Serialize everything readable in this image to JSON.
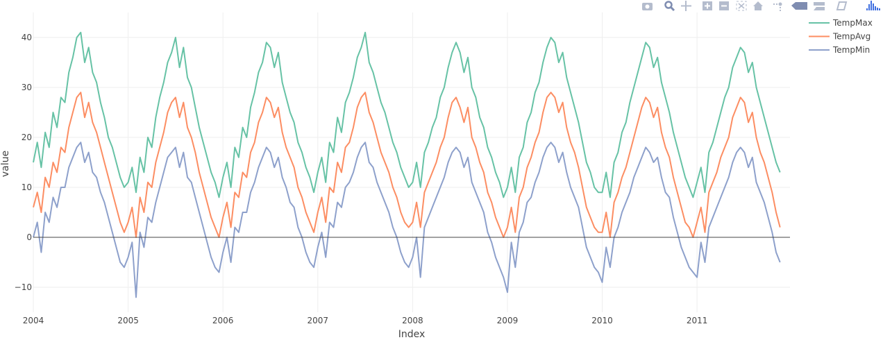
{
  "toolbar": {
    "buttons": [
      "camera-icon",
      "zoom-icon",
      "pan-icon",
      "zoom-in-icon",
      "zoom-out-icon",
      "autoscale-icon",
      "home-icon",
      "spike-lines-icon",
      "hover-closest-icon",
      "hover-compare-icon",
      "book-icon",
      "plotly-logo-icon"
    ]
  },
  "colors": {
    "TempMax": "#66c2a5",
    "TempAvg": "#fc8d62",
    "TempMin": "#8da0cb",
    "zeroline": "#444444",
    "grid": "#eeeeee",
    "toolbar": "#b4bccd",
    "active": "#7f8db1",
    "logo": "#3f6fe0"
  },
  "chart_data": {
    "type": "line",
    "title": "",
    "xlabel": "Index",
    "ylabel": "value",
    "xlim": [
      2004,
      2011.98
    ],
    "ylim": [
      -15,
      45
    ],
    "grid": true,
    "legend_position": "top-right",
    "x_start": 2004,
    "x_step_years": 0.0416667,
    "sampling": "semi-monthly (approximate)",
    "xticks": [
      "2004",
      "2005",
      "2006",
      "2007",
      "2008",
      "2009",
      "2010",
      "2011"
    ],
    "xtick_values": [
      2004,
      2005,
      2006,
      2007,
      2008,
      2009,
      2010,
      2011
    ],
    "yticks": [
      "−10",
      "0",
      "10",
      "20",
      "30",
      "40"
    ],
    "ytick_values": [
      -10,
      0,
      10,
      20,
      30,
      40
    ],
    "series": [
      {
        "name": "TempMax",
        "values": [
          15,
          19,
          14,
          21,
          18,
          25,
          22,
          28,
          27,
          33,
          36,
          40,
          41,
          35,
          38,
          33,
          31,
          27,
          24,
          20,
          18,
          15,
          12,
          10,
          11,
          14,
          9,
          16,
          13,
          20,
          18,
          24,
          28,
          31,
          35,
          37,
          40,
          34,
          38,
          32,
          30,
          26,
          22,
          19,
          16,
          13,
          11,
          8,
          12,
          15,
          10,
          18,
          16,
          22,
          20,
          26,
          29,
          33,
          35,
          39,
          38,
          34,
          37,
          31,
          28,
          25,
          23,
          19,
          17,
          14,
          12,
          9,
          13,
          16,
          11,
          19,
          17,
          24,
          21,
          27,
          29,
          32,
          36,
          38,
          41,
          35,
          33,
          30,
          27,
          25,
          22,
          19,
          17,
          14,
          12,
          10,
          11,
          15,
          10,
          17,
          19,
          22,
          24,
          28,
          30,
          34,
          37,
          39,
          37,
          33,
          36,
          30,
          28,
          24,
          22,
          18,
          16,
          13,
          11,
          8,
          10,
          14,
          9,
          16,
          18,
          23,
          25,
          29,
          31,
          35,
          38,
          40,
          39,
          35,
          37,
          32,
          29,
          26,
          23,
          19,
          15,
          13,
          10,
          9,
          9,
          13,
          8,
          15,
          17,
          21,
          23,
          27,
          30,
          33,
          36,
          39,
          38,
          34,
          36,
          31,
          28,
          25,
          21,
          18,
          15,
          12,
          10,
          8,
          11,
          14,
          9,
          17,
          19,
          22,
          25,
          28,
          30,
          34,
          36,
          38,
          37,
          33,
          35,
          30,
          27,
          24,
          21,
          18,
          15,
          13
        ]
      },
      {
        "name": "TempAvg",
        "values": [
          6,
          9,
          5,
          12,
          10,
          15,
          13,
          18,
          17,
          22,
          25,
          28,
          29,
          24,
          27,
          23,
          21,
          18,
          15,
          12,
          9,
          6,
          3,
          1,
          3,
          6,
          0,
          8,
          5,
          11,
          10,
          15,
          18,
          21,
          25,
          27,
          28,
          24,
          27,
          22,
          20,
          17,
          13,
          10,
          7,
          4,
          2,
          0,
          4,
          7,
          2,
          9,
          8,
          13,
          12,
          17,
          19,
          23,
          25,
          28,
          27,
          24,
          26,
          21,
          18,
          16,
          14,
          10,
          8,
          5,
          3,
          1,
          5,
          8,
          3,
          10,
          9,
          15,
          13,
          18,
          19,
          22,
          26,
          28,
          29,
          25,
          23,
          20,
          17,
          15,
          13,
          10,
          8,
          5,
          3,
          2,
          3,
          7,
          2,
          9,
          11,
          13,
          15,
          18,
          20,
          24,
          27,
          28,
          26,
          23,
          26,
          20,
          18,
          15,
          13,
          9,
          7,
          4,
          2,
          0,
          2,
          6,
          1,
          8,
          10,
          14,
          16,
          19,
          21,
          25,
          28,
          29,
          28,
          25,
          27,
          22,
          19,
          17,
          14,
          10,
          6,
          4,
          2,
          1,
          1,
          5,
          0,
          7,
          9,
          12,
          14,
          17,
          20,
          23,
          26,
          28,
          27,
          24,
          26,
          21,
          18,
          16,
          12,
          9,
          6,
          3,
          2,
          0,
          3,
          6,
          1,
          9,
          11,
          13,
          16,
          18,
          20,
          24,
          26,
          28,
          27,
          23,
          25,
          20,
          17,
          15,
          12,
          9,
          5,
          2
        ]
      },
      {
        "name": "TempMin",
        "values": [
          0,
          3,
          -3,
          5,
          3,
          8,
          6,
          10,
          10,
          14,
          16,
          18,
          19,
          15,
          17,
          13,
          12,
          9,
          7,
          4,
          1,
          -2,
          -5,
          -6,
          -4,
          -1,
          -12,
          1,
          -2,
          4,
          3,
          7,
          10,
          13,
          16,
          17,
          18,
          14,
          17,
          12,
          11,
          8,
          5,
          2,
          -1,
          -4,
          -6,
          -7,
          -3,
          0,
          -5,
          2,
          1,
          5,
          5,
          9,
          11,
          14,
          16,
          18,
          17,
          14,
          16,
          12,
          10,
          7,
          6,
          2,
          0,
          -3,
          -5,
          -6,
          -2,
          1,
          -4,
          3,
          2,
          7,
          6,
          10,
          11,
          13,
          16,
          18,
          19,
          15,
          14,
          11,
          9,
          7,
          5,
          2,
          0,
          -3,
          -5,
          -6,
          -4,
          0,
          -8,
          2,
          4,
          6,
          8,
          10,
          12,
          15,
          17,
          18,
          17,
          14,
          16,
          11,
          9,
          7,
          5,
          1,
          -1,
          -4,
          -6,
          -8,
          -11,
          -1,
          -6,
          1,
          3,
          7,
          8,
          11,
          13,
          16,
          18,
          19,
          18,
          15,
          17,
          13,
          10,
          8,
          6,
          2,
          -2,
          -4,
          -6,
          -7,
          -9,
          -2,
          -6,
          0,
          2,
          5,
          7,
          9,
          12,
          14,
          16,
          18,
          17,
          15,
          16,
          12,
          9,
          8,
          4,
          1,
          -2,
          -4,
          -6,
          -7,
          -8,
          -1,
          -5,
          2,
          4,
          6,
          8,
          10,
          12,
          15,
          17,
          18,
          17,
          14,
          16,
          11,
          9,
          7,
          4,
          1,
          -3,
          -5
        ]
      }
    ]
  }
}
